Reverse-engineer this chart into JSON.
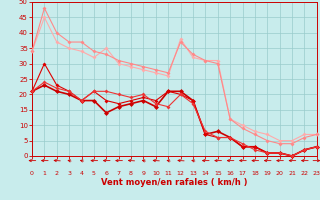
{
  "xlabel": "Vent moyen/en rafales ( km/h )",
  "xlim": [
    0,
    23
  ],
  "ylim": [
    0,
    50
  ],
  "yticks": [
    0,
    5,
    10,
    15,
    20,
    25,
    30,
    35,
    40,
    45,
    50
  ],
  "xticks": [
    0,
    1,
    2,
    3,
    4,
    5,
    6,
    7,
    8,
    9,
    10,
    11,
    12,
    13,
    14,
    15,
    16,
    17,
    18,
    19,
    20,
    21,
    22,
    23
  ],
  "bg_color": "#c8ecec",
  "grid_color": "#99cccc",
  "series": [
    {
      "x": [
        0,
        1,
        2,
        3,
        4,
        5,
        6,
        7,
        8,
        9,
        10,
        11,
        12,
        13,
        14,
        15,
        16,
        17,
        18,
        19,
        20,
        21,
        22,
        23
      ],
      "y": [
        34,
        45,
        37,
        35,
        34,
        32,
        35,
        30,
        29,
        28,
        27,
        26,
        38,
        32,
        31,
        31,
        12,
        10,
        8,
        7,
        5,
        5,
        7,
        7
      ],
      "color": "#ffaaaa",
      "lw": 0.8,
      "ms": 2.0
    },
    {
      "x": [
        0,
        1,
        2,
        3,
        4,
        5,
        6,
        7,
        8,
        9,
        10,
        11,
        12,
        13,
        14,
        15,
        16,
        17,
        18,
        19,
        20,
        21,
        22,
        23
      ],
      "y": [
        34,
        48,
        40,
        37,
        37,
        34,
        33,
        31,
        30,
        29,
        28,
        27,
        37,
        33,
        31,
        30,
        12,
        9,
        7,
        5,
        4,
        4,
        6,
        7
      ],
      "color": "#ff8888",
      "lw": 0.8,
      "ms": 2.0
    },
    {
      "x": [
        0,
        1,
        2,
        3,
        4,
        5,
        6,
        7,
        8,
        9,
        10,
        11,
        12,
        13,
        14,
        15,
        16,
        17,
        18,
        19,
        20,
        21,
        22,
        23
      ],
      "y": [
        21,
        23,
        21,
        20,
        18,
        18,
        14,
        16,
        17,
        18,
        16,
        21,
        21,
        18,
        7,
        8,
        6,
        3,
        3,
        1,
        1,
        0,
        2,
        3
      ],
      "color": "#cc0000",
      "lw": 1.2,
      "ms": 2.5
    },
    {
      "x": [
        0,
        1,
        2,
        3,
        4,
        5,
        6,
        7,
        8,
        9,
        10,
        11,
        12,
        13,
        14,
        15,
        16,
        17,
        18,
        19,
        20,
        21,
        22,
        23
      ],
      "y": [
        21,
        30,
        23,
        21,
        18,
        21,
        18,
        17,
        18,
        19,
        18,
        21,
        20,
        18,
        7,
        6,
        6,
        3,
        3,
        1,
        1,
        0,
        2,
        3
      ],
      "color": "#dd0000",
      "lw": 0.8,
      "ms": 2.0
    },
    {
      "x": [
        0,
        1,
        2,
        3,
        4,
        5,
        6,
        7,
        8,
        9,
        10,
        11,
        12,
        13,
        14,
        15,
        16,
        17,
        18,
        19,
        20,
        21,
        22,
        23
      ],
      "y": [
        21,
        24,
        22,
        21,
        18,
        21,
        21,
        20,
        19,
        20,
        17,
        16,
        20,
        17,
        8,
        6,
        6,
        4,
        2,
        1,
        1,
        0,
        2,
        3
      ],
      "color": "#ee3333",
      "lw": 0.8,
      "ms": 2.0
    }
  ],
  "arrow_angles_deg": [
    270,
    270,
    285,
    315,
    315,
    270,
    270,
    270,
    285,
    315,
    285,
    315,
    285,
    315,
    270,
    270,
    270,
    270,
    270,
    270,
    270,
    270,
    270,
    90
  ],
  "arrow_color": "#cc0000",
  "xlabel_fontsize": 6,
  "ytick_fontsize": 5,
  "xtick_fontsize": 4.5
}
